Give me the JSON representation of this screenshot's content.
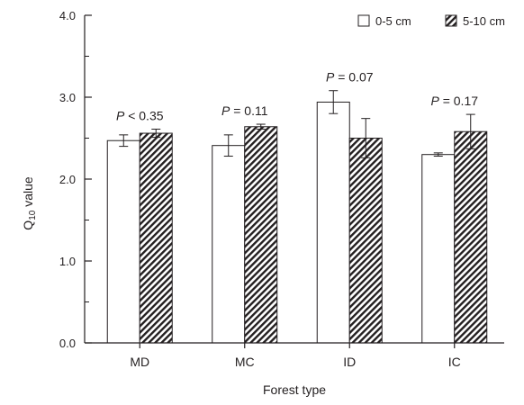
{
  "chart_data": {
    "type": "bar",
    "xlabel": "Forest type",
    "ylabel_main": "Q",
    "ylabel_sub": "10",
    "ylabel_rest": " value",
    "ylim": [
      0,
      4
    ],
    "yticks": [
      "0.0",
      "1.0",
      "2.0",
      "3.0",
      "4.0"
    ],
    "categories": [
      "MD",
      "MC",
      "ID",
      "IC"
    ],
    "series": [
      {
        "name": "0-5 cm",
        "pattern": "open",
        "values": [
          2.47,
          2.41,
          2.94,
          2.3
        ],
        "errors": [
          0.07,
          0.13,
          0.14,
          0.02
        ]
      },
      {
        "name": "5-10 cm",
        "pattern": "hatched",
        "values": [
          2.56,
          2.64,
          2.5,
          2.58
        ],
        "errors": [
          0.05,
          0.03,
          0.24,
          0.21
        ]
      }
    ],
    "annotations": [
      {
        "p": "P",
        "rest": " < 0.35"
      },
      {
        "p": "P",
        "rest": " = 0.11"
      },
      {
        "p": "P",
        "rest": " = 0.07"
      },
      {
        "p": "P",
        "rest": " = 0.17"
      }
    ],
    "grid": false,
    "legend_position": "top-right"
  }
}
